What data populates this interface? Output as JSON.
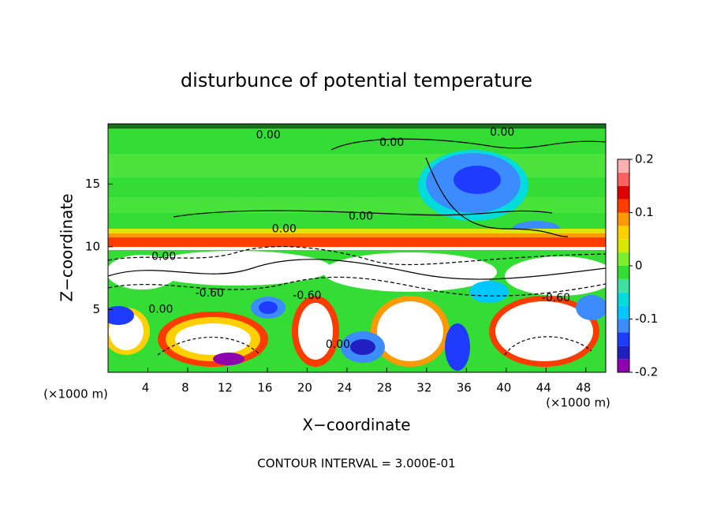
{
  "chart_data": {
    "type": "contour",
    "title": "disturbunce of potential temperature",
    "x_label": "X−coordinate",
    "y_label": "Z−coordinate",
    "x_unit_labels": [
      "(×1000 m)",
      "(×1000 m)"
    ],
    "note": "CONTOUR INTERVAL = 3.000E-01",
    "xlim": [
      0,
      50
    ],
    "xticks": [
      4,
      8,
      12,
      16,
      20,
      24,
      28,
      32,
      36,
      40,
      44,
      48
    ],
    "ylim": [
      0,
      19.8
    ],
    "yticks": [
      5,
      10,
      15
    ],
    "colorbar": {
      "lim": [
        -0.2,
        0.2
      ],
      "ticks": [
        0.2,
        0.1,
        0,
        -0.1,
        -0.2
      ],
      "colors": [
        "#8f00b0",
        "#2020c0",
        "#1e3cff",
        "#3c8cff",
        "#00c8ff",
        "#00dcdc",
        "#40e0a0",
        "#33dd33",
        "#7cee2a",
        "#d8e800",
        "#ffd000",
        "#ff9900",
        "#ff3c00",
        "#e00000",
        "#ff6060",
        "#ffb0b0"
      ]
    },
    "annotations": [
      {
        "text": "0.00",
        "x": 16.1,
        "y": 18.9
      },
      {
        "text": "0.00",
        "x": 28.5,
        "y": 18.3
      },
      {
        "text": "0.00",
        "x": 39.6,
        "y": 19.1
      },
      {
        "text": "0.00",
        "x": 25.4,
        "y": 12.4
      },
      {
        "text": "0.00",
        "x": 17.7,
        "y": 11.4
      },
      {
        "text": "0.00",
        "x": 5.6,
        "y": 9.2
      },
      {
        "text": "0.00",
        "x": 5.3,
        "y": 5.0
      },
      {
        "text": "0.00",
        "x": 23.1,
        "y": 2.2
      },
      {
        "text": "-0.60",
        "x": 20.0,
        "y": 6.1
      },
      {
        "text": "-0.60",
        "x": 45.0,
        "y": 5.9
      },
      {
        "text": "-0.60",
        "x": 10.2,
        "y": 6.3
      }
    ]
  }
}
